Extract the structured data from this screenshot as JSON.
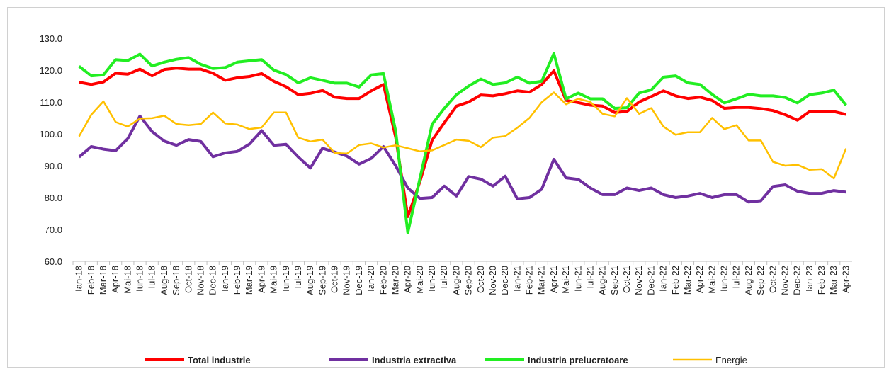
{
  "chart_data": {
    "type": "line",
    "categories": [
      "Ian-18",
      "Feb-18",
      "Mar-18",
      "Apr-18",
      "Mai-18",
      "Iun-18",
      "Iul-18",
      "Aug-18",
      "Sep-18",
      "Oct-18",
      "Nov-18",
      "Dec-18",
      "Ian-19",
      "Feb-19",
      "Mar-19",
      "Apr-19",
      "Mai-19",
      "Iun-19",
      "Iul-19",
      "Aug-19",
      "Sep-19",
      "Oct-19",
      "Nov-19",
      "Dec-19",
      "Ian-20",
      "Feb-20",
      "Mar-20",
      "Apr-20",
      "Mai-20",
      "Iun-20",
      "Iul-20",
      "Aug-20",
      "Sep-20",
      "Oct-20",
      "Nov-20",
      "Dec-20",
      "Ian-21",
      "Feb-21",
      "Mar-21",
      "Apr-21",
      "Mai-21",
      "Iun-21",
      "Iul-21",
      "Aug-21",
      "Sep-21",
      "Oct-21",
      "Nov-21",
      "Dec-21",
      "Ian-22",
      "Feb-22",
      "Mar-22",
      "Apr-22",
      "Mai-22",
      "Iun-22",
      "Iul-22",
      "Aug-22",
      "Sep-22",
      "Oct-22",
      "Nov-22",
      "Dec-22",
      "Ian-23",
      "Feb-23",
      "Mar-23",
      "Apr-23"
    ],
    "series": [
      {
        "name": "Total industrie",
        "color": "#ff0000",
        "values": [
          116.2,
          115.5,
          116.3,
          119,
          118.7,
          120.3,
          118.2,
          120.2,
          120.6,
          120.3,
          120.3,
          119,
          116.8,
          117.6,
          118,
          118.9,
          116.5,
          114.8,
          112.3,
          112.7,
          113.6,
          111.5,
          111.1,
          111.1,
          113.5,
          115.5,
          99,
          74,
          85,
          98,
          103.5,
          108.7,
          110,
          112.2,
          111.9,
          112.6,
          113.5,
          113.1,
          115.5,
          119.8,
          110.5,
          109.8,
          109,
          108.7,
          106.7,
          107,
          110,
          111.7,
          113.5,
          111.9,
          111.1,
          111.5,
          110.5,
          108,
          108.3,
          108.3,
          107.9,
          107.3,
          106,
          104.3,
          107,
          107,
          107,
          106.1
        ]
      },
      {
        "name": "Industria extractiva",
        "color": "#7030a0",
        "values": [
          92.7,
          96,
          95.2,
          94.7,
          98.5,
          105.6,
          100.7,
          97.7,
          96.4,
          98.2,
          97.6,
          92.8,
          94,
          94.5,
          96.8,
          101,
          96.4,
          96.7,
          92.7,
          89.3,
          95.5,
          94.3,
          93,
          90.5,
          92.3,
          96,
          90,
          83,
          79.7,
          80,
          83.6,
          80.5,
          86.6,
          85.8,
          83.6,
          86.7,
          79.6,
          80,
          82.6,
          92,
          86.2,
          85.7,
          83,
          80.9,
          80.9,
          83,
          82.2,
          83,
          80.9,
          80,
          80.5,
          81.3,
          80,
          80.9,
          80.9,
          78.6,
          79,
          83.5,
          84,
          82,
          81.3,
          81.3,
          82.2,
          81.7
        ]
      },
      {
        "name": "Industria prelucratoare",
        "color": "#22ee22",
        "values": [
          121.2,
          118.2,
          118.5,
          123.3,
          123,
          125,
          121.3,
          122.5,
          123.4,
          123.9,
          121.8,
          120.5,
          120.8,
          122.5,
          122.9,
          123.3,
          120,
          118.6,
          116,
          117.6,
          116.8,
          115.9,
          115.9,
          114.7,
          118.5,
          118.9,
          101,
          69,
          86,
          103,
          108,
          112.3,
          115,
          117.2,
          115.5,
          116,
          117.8,
          115.9,
          116.5,
          125.2,
          111,
          112.8,
          111,
          111,
          108,
          108.2,
          112.8,
          113.8,
          117.8,
          118.2,
          116,
          115.5,
          112.4,
          109.7,
          111,
          112.4,
          111.9,
          111.9,
          111.4,
          109.7,
          112.3,
          112.8,
          113.7,
          109
        ]
      },
      {
        "name": "Energie",
        "color": "#ffc000",
        "values": [
          99.2,
          106,
          110.2,
          103.7,
          102.3,
          104.8,
          104.9,
          105.7,
          103.1,
          102.7,
          103.1,
          106.7,
          103.3,
          102.9,
          101.5,
          102,
          106.7,
          106.7,
          98.8,
          97.6,
          98.2,
          94,
          93.8,
          96.5,
          97,
          95.7,
          96.4,
          95.5,
          94.5,
          94.8,
          96.5,
          98.2,
          97.8,
          95.8,
          98.8,
          99.3,
          101.9,
          105,
          109.9,
          113,
          109.3,
          111,
          110,
          106.3,
          105.5,
          111.2,
          106.3,
          108.1,
          102.3,
          99.7,
          100.5,
          100.5,
          105,
          101.5,
          102.7,
          97.9,
          97.9,
          91.2,
          90,
          90.3,
          88.7,
          88.9,
          86,
          95.4
        ]
      }
    ],
    "ylim": [
      60,
      130
    ],
    "yticks": [
      {
        "value": 60,
        "label": "60.0"
      },
      {
        "value": 70,
        "label": "70.0"
      },
      {
        "value": 80,
        "label": "80.0"
      },
      {
        "value": 90,
        "label": "90.0"
      },
      {
        "value": 100,
        "label": "100.0"
      },
      {
        "value": 110,
        "label": "110.0"
      },
      {
        "value": 120,
        "label": "120.0"
      },
      {
        "value": 130,
        "label": "130.0"
      }
    ],
    "grid": false
  }
}
